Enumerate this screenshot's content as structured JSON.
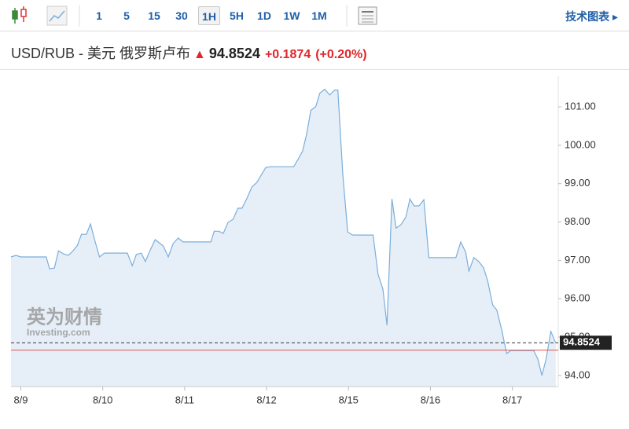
{
  "toolbar": {
    "intervals": [
      "1",
      "5",
      "15",
      "30",
      "1H",
      "5H",
      "1D",
      "1W",
      "1M"
    ],
    "selected": "1H",
    "link": "技术图表"
  },
  "chart_data": {
    "type": "area",
    "title": "USD/RUB - 美元 俄罗斯卢布",
    "last": 94.8524,
    "change": "+0.1874",
    "change_pct": "(+0.20%)",
    "watermark": "英为财情",
    "watermark_sub": "Investing.com",
    "color": "#7aaedb",
    "fill": "#e6eff8",
    "prev_close": 94.66,
    "x": [
      -0.12,
      -0.06,
      0,
      0.31,
      0.35,
      0.41,
      0.46,
      0.52,
      0.58,
      0.63,
      0.69,
      0.74,
      0.8,
      0.85,
      0.9,
      0.96,
      1.02,
      1.3,
      1.36,
      1.41,
      1.47,
      1.52,
      1.58,
      1.64,
      1.74,
      1.8,
      1.86,
      1.92,
      1.98,
      2.32,
      2.36,
      2.42,
      2.47,
      2.53,
      2.59,
      2.65,
      2.7,
      2.76,
      2.82,
      2.88,
      2.93,
      2.99,
      3.05,
      3.33,
      3.38,
      3.44,
      3.49,
      3.54,
      3.6,
      3.65,
      3.71,
      3.77,
      3.83,
      3.87,
      3.93,
      3.99,
      4.05,
      4.3,
      4.36,
      4.42,
      4.47,
      4.53,
      4.58,
      4.64,
      4.7,
      4.75,
      4.8,
      4.86,
      4.92,
      4.98,
      5.31,
      5.37,
      5.43,
      5.47,
      5.53,
      5.59,
      5.65,
      5.7,
      5.76,
      5.81,
      5.87,
      5.93,
      5.98,
      6.26,
      6.31,
      6.36,
      6.41,
      6.47,
      6.53
    ],
    "values": [
      97.09,
      97.13,
      97.09,
      97.09,
      96.78,
      96.8,
      97.25,
      97.17,
      97.13,
      97.23,
      97.39,
      97.68,
      97.68,
      97.95,
      97.54,
      97.09,
      97.19,
      97.19,
      96.86,
      97.15,
      97.19,
      96.97,
      97.27,
      97.54,
      97.37,
      97.09,
      97.44,
      97.58,
      97.48,
      97.48,
      97.76,
      97.76,
      97.7,
      97.99,
      98.07,
      98.36,
      98.36,
      98.62,
      98.91,
      99.03,
      99.21,
      99.42,
      99.44,
      99.44,
      99.62,
      99.85,
      100.3,
      100.91,
      101.01,
      101.36,
      101.46,
      101.31,
      101.44,
      101.44,
      99.24,
      97.74,
      97.66,
      97.66,
      96.64,
      96.25,
      95.31,
      98.6,
      97.84,
      97.93,
      98.13,
      98.6,
      98.42,
      98.42,
      98.58,
      97.07,
      97.07,
      97.48,
      97.21,
      96.72,
      97.07,
      96.97,
      96.8,
      96.45,
      95.84,
      95.7,
      95.19,
      94.57,
      94.65,
      94.65,
      94.43,
      94.0,
      94.41,
      95.15,
      94.84
    ],
    "xlim": [
      -0.12,
      6.56
    ],
    "xticks": [
      {
        "value": 0,
        "label": "8/9"
      },
      {
        "value": 1,
        "label": "8/10"
      },
      {
        "value": 2,
        "label": "8/11"
      },
      {
        "value": 3,
        "label": "8/12"
      },
      {
        "value": 4,
        "label": "8/15"
      },
      {
        "value": 5,
        "label": "8/16"
      },
      {
        "value": 6,
        "label": "8/17"
      }
    ],
    "ylim": [
      93.71,
      101.8
    ],
    "yticks": [
      {
        "value": 94,
        "label": "94.00"
      },
      {
        "value": 95,
        "label": "95.00"
      },
      {
        "value": 96,
        "label": "96.00"
      },
      {
        "value": 97,
        "label": "97.00"
      },
      {
        "value": 98,
        "label": "98.00"
      },
      {
        "value": 99,
        "label": "99.00"
      },
      {
        "value": 100,
        "label": "100.00"
      },
      {
        "value": 101,
        "label": "101.00"
      }
    ]
  }
}
